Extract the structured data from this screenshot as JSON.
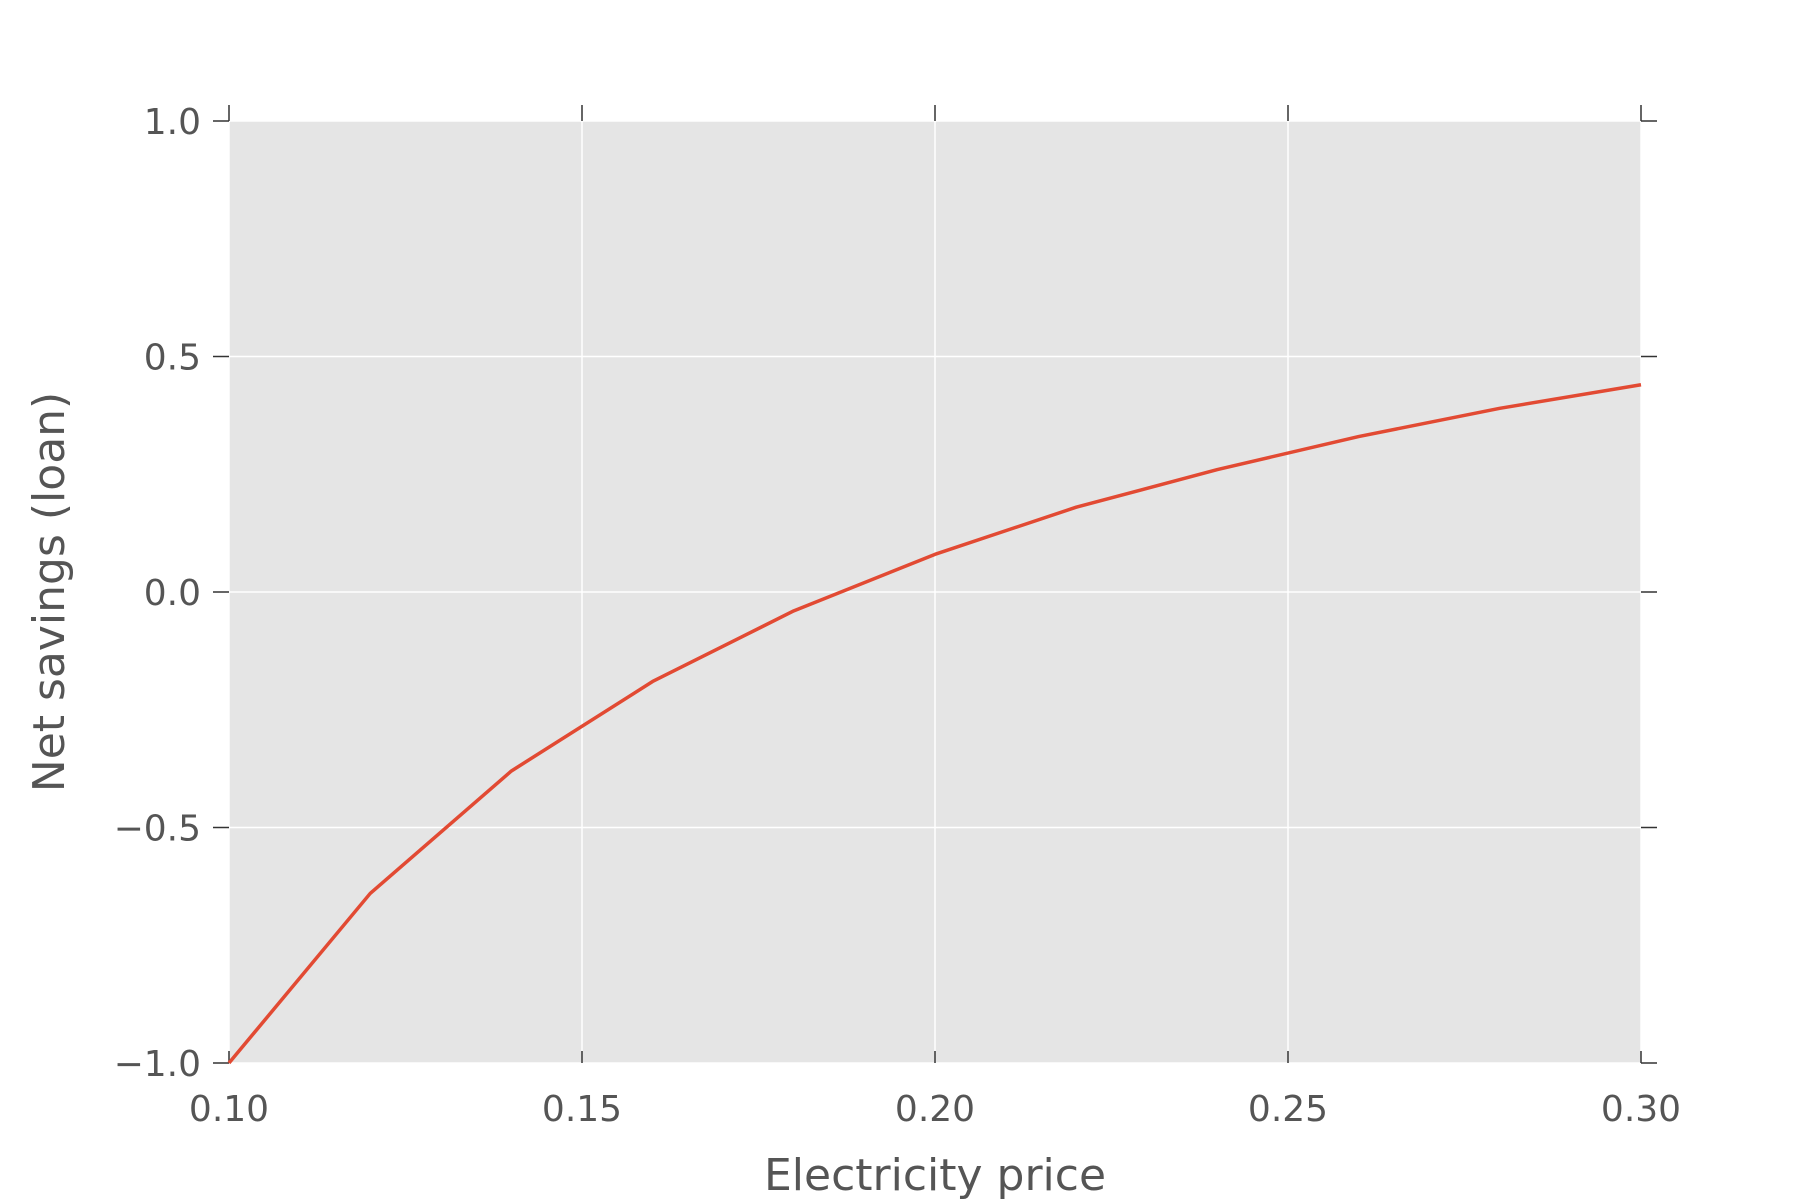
{
  "chart_data": {
    "type": "line",
    "title": "",
    "xlabel": "Electricity price",
    "ylabel": "Net savings (loan)",
    "xlim": [
      0.1,
      0.3
    ],
    "ylim": [
      -1.0,
      1.0
    ],
    "xticks": [
      0.1,
      0.15,
      0.2,
      0.25,
      0.3
    ],
    "xtick_labels": [
      "0.10",
      "0.15",
      "0.20",
      "0.25",
      "0.30"
    ],
    "yticks": [
      -1.0,
      -0.5,
      0.0,
      0.5,
      1.0
    ],
    "ytick_labels": [
      "−1.0",
      "−0.5",
      "0.0",
      "0.5",
      "1.0"
    ],
    "grid": true,
    "background": "#e5e5e5",
    "grid_color": "#ffffff",
    "series": [
      {
        "color": "#e24a33",
        "x": [
          0.1,
          0.12,
          0.14,
          0.16,
          0.18,
          0.2,
          0.22,
          0.24,
          0.26,
          0.28,
          0.3
        ],
        "y": [
          -1.0,
          -0.64,
          -0.38,
          -0.19,
          -0.04,
          0.08,
          0.18,
          0.26,
          0.33,
          0.39,
          0.44
        ]
      }
    ]
  }
}
